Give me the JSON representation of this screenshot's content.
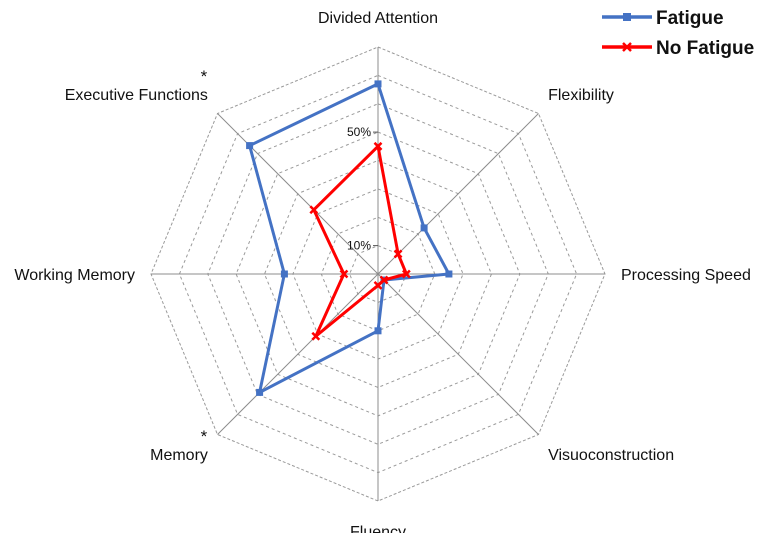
{
  "chart_data": {
    "type": "radar",
    "axes": [
      "Divided Attention",
      "Flexibility",
      "Processing Speed",
      "Visuoconstruction",
      "Fluency",
      "Memory",
      "Working Memory",
      "Executive Functions"
    ],
    "axis_markers": [
      "",
      "",
      "",
      "",
      "",
      "*",
      "",
      "*"
    ],
    "rlim": [
      0,
      80
    ],
    "rings": 8,
    "tick_labels": [
      {
        "value": 10,
        "label": "10%"
      },
      {
        "value": 50,
        "label": "50%"
      }
    ],
    "grid": true,
    "legend_position": "top-right",
    "series": [
      {
        "name": "Fatigue",
        "color": "#4472C4",
        "marker": "square",
        "values": [
          67,
          23,
          25,
          3,
          20,
          59,
          33,
          64
        ]
      },
      {
        "name": "No Fatigue",
        "color": "#FF0000",
        "marker": "x",
        "values": [
          45,
          10,
          10,
          3,
          4,
          31,
          12,
          32
        ]
      }
    ]
  }
}
